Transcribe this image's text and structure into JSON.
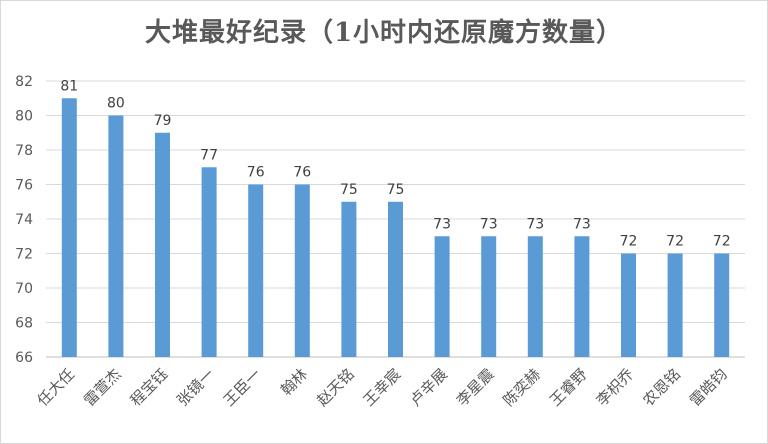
{
  "chart_data": {
    "type": "bar",
    "title": "大堆最好纪录（1小时内还原魔方数量）",
    "categories": [
      "任大任",
      "雷萱杰",
      "程宝钰",
      "张镜一",
      "王臣一",
      "翰林",
      "赵天铭",
      "王幸宸",
      "卢辛展",
      "李星震",
      "陈奕赫",
      "王睿野",
      "李枳乔",
      "农恩铭",
      "雷皓钧"
    ],
    "values": [
      81,
      80,
      79,
      77,
      76,
      76,
      75,
      75,
      73,
      73,
      73,
      73,
      72,
      72,
      72
    ],
    "ylim": [
      66,
      82
    ],
    "yticks": [
      66,
      68,
      70,
      72,
      74,
      76,
      78,
      80,
      82
    ],
    "grid": true,
    "legend": "none",
    "colors": {
      "bar": "#5B9BD5",
      "grid": "#d9d9d9",
      "text": "#595959"
    }
  }
}
